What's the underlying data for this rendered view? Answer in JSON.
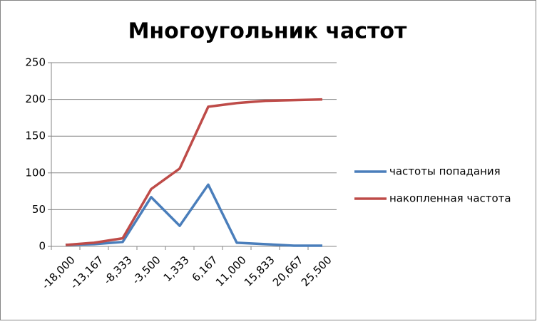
{
  "chart_data": {
    "type": "line",
    "title": "Многоугольник частот",
    "categories": [
      "-18,000",
      "-13,167",
      "-8,333",
      "-3,500",
      "1,333",
      "6,167",
      "11,000",
      "15,833",
      "20,667",
      "25,500"
    ],
    "series": [
      {
        "name": "частоты попадания",
        "color": "#4a7ebb",
        "values": [
          2,
          3,
          6,
          67,
          28,
          84,
          5,
          3,
          1,
          1
        ]
      },
      {
        "name": "накопленная частота",
        "color": "#be4b48",
        "values": [
          2,
          5,
          11,
          78,
          106,
          190,
          195,
          198,
          199,
          200
        ]
      }
    ],
    "ylim": [
      0,
      250
    ],
    "yticks": [
      0,
      50,
      100,
      150,
      200,
      250
    ],
    "grid": true,
    "legend": "right"
  }
}
